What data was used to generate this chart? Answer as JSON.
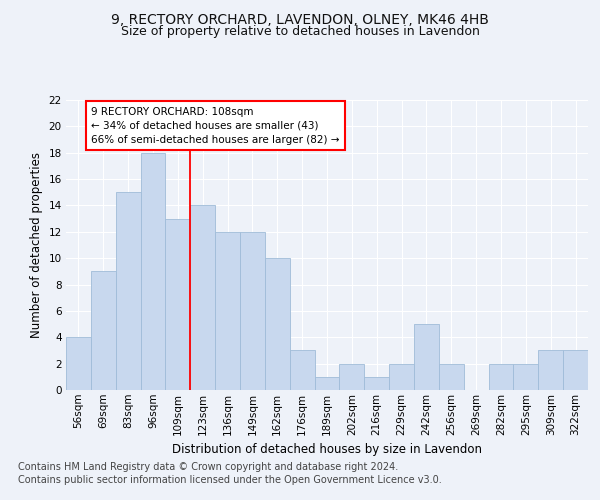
{
  "title1": "9, RECTORY ORCHARD, LAVENDON, OLNEY, MK46 4HB",
  "title2": "Size of property relative to detached houses in Lavendon",
  "xlabel": "Distribution of detached houses by size in Lavendon",
  "ylabel": "Number of detached properties",
  "categories": [
    "56sqm",
    "69sqm",
    "83sqm",
    "96sqm",
    "109sqm",
    "123sqm",
    "136sqm",
    "149sqm",
    "162sqm",
    "176sqm",
    "189sqm",
    "202sqm",
    "216sqm",
    "229sqm",
    "242sqm",
    "256sqm",
    "269sqm",
    "282sqm",
    "295sqm",
    "309sqm",
    "322sqm"
  ],
  "values": [
    4,
    9,
    15,
    18,
    13,
    14,
    12,
    12,
    10,
    3,
    1,
    2,
    1,
    2,
    5,
    2,
    0,
    2,
    2,
    3,
    3
  ],
  "bar_color": "#c8d8ee",
  "bar_edge_color": "#a0bcd8",
  "red_line_index": 4,
  "annotation_line1": "9 RECTORY ORCHARD: 108sqm",
  "annotation_line2": "← 34% of detached houses are smaller (43)",
  "annotation_line3": "66% of semi-detached houses are larger (82) →",
  "ylim_max": 22,
  "yticks": [
    0,
    2,
    4,
    6,
    8,
    10,
    12,
    14,
    16,
    18,
    20,
    22
  ],
  "footer1": "Contains HM Land Registry data © Crown copyright and database right 2024.",
  "footer2": "Contains public sector information licensed under the Open Government Licence v3.0.",
  "background_color": "#eef2f9",
  "grid_color": "#ffffff",
  "title1_fontsize": 10,
  "title2_fontsize": 9,
  "ylabel_fontsize": 8.5,
  "xlabel_fontsize": 8.5,
  "tick_fontsize": 7.5,
  "annotation_fontsize": 7.5,
  "footer_fontsize": 7
}
